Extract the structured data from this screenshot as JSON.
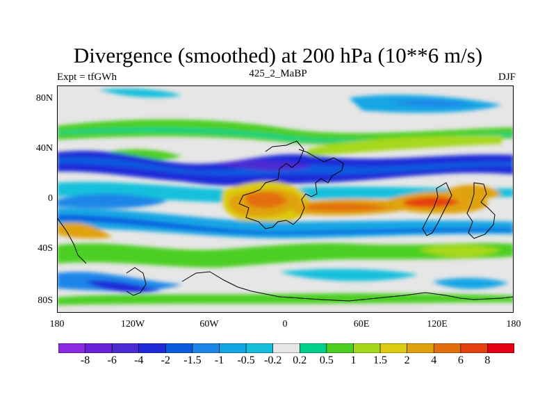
{
  "map": {
    "title": "Divergence (smoothed) at 200 hPa (10**6 m/s)",
    "experiment_label": "Expt = tfGWh",
    "run_label": "425_2_MaBP",
    "season_label": "DJF",
    "lat_labels": [
      "80N",
      "40N",
      "0",
      "40S",
      "80S"
    ],
    "lon_labels": [
      "180",
      "120W",
      "60W",
      "0",
      "60E",
      "120E",
      "180"
    ],
    "colorbar": {
      "colors": [
        "#8a2be2",
        "#6a1fd8",
        "#4b2bd2",
        "#1f2ad8",
        "#0a5ae0",
        "#1e86e8",
        "#14a6e4",
        "#16c0dc",
        "#e6e6e6",
        "#00d18a",
        "#4ccf20",
        "#a6d81a",
        "#dccb10",
        "#e0a20c",
        "#e36e0c",
        "#e5400f",
        "#e40012"
      ],
      "labels": [
        "-8",
        "-6",
        "-4",
        "-2",
        "-1.5",
        "-1",
        "-0.5",
        "-0.2",
        "0.2",
        "0.5",
        "1",
        "1.5",
        "2",
        "4",
        "6",
        "8"
      ]
    }
  }
}
